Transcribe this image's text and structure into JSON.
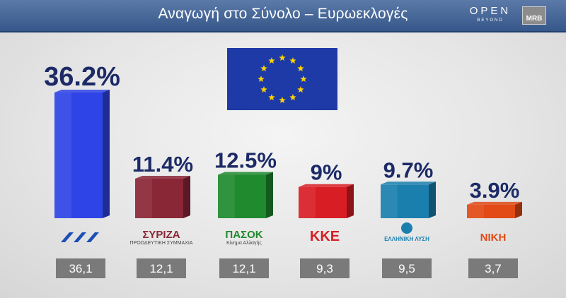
{
  "header": {
    "title": "Αναγωγή στο Σύνολο – Ευρωεκλογές",
    "brand_top": "OPEN",
    "brand_bottom": "BEYOND",
    "brand_mrb": "MRB"
  },
  "chart_data": {
    "type": "bar",
    "title": "Αναγωγή στο Σύνολο – Ευρωεκλογές",
    "categories": [
      "ΝΔ",
      "ΣΥΡΙΖΑ",
      "ΠΑΣΟΚ",
      "ΚΚΕ",
      "ΕΛΛΗΝΙΚΗ ΛΥΣΗ",
      "ΝΙΚΗ"
    ],
    "values": [
      36.2,
      11.4,
      12.5,
      9,
      9.7,
      3.9
    ],
    "value_labels": [
      "36.2%",
      "11.4%",
      "12.5%",
      "9%",
      "9.7%",
      "3.9%"
    ],
    "raw_values": [
      "36,1",
      "12,1",
      "12,1",
      "9,3",
      "9,5",
      "3,7"
    ],
    "colors": [
      "#2f44e6",
      "#8a2737",
      "#1f8a2e",
      "#d81e24",
      "#1b7fae",
      "#e24a16"
    ],
    "logo_texts": [
      "",
      "ΣΥΡΙΖΑ",
      "ΠΑΣΟΚ",
      "ΚΚΕ",
      "ΕΛΛΗΝΙΚΗ ΛΥΣΗ",
      "ΝΙΚΗ"
    ],
    "logo_subtexts": [
      "",
      "ΠΡΟΟΔΕΥΤΙΚΗ ΣΥΜΜΑΧΙΑ",
      "Κίνημα Αλλαγής",
      "",
      "",
      ""
    ],
    "ylim": [
      0,
      40
    ],
    "xlabel": "",
    "ylabel": "",
    "grid": false
  }
}
